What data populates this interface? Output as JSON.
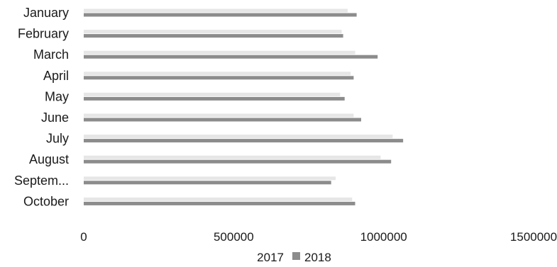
{
  "chart_data": {
    "type": "bar",
    "orientation": "horizontal",
    "categories": [
      "January",
      "February",
      "March",
      "April",
      "May",
      "June",
      "July",
      "August",
      "Septem...",
      "October"
    ],
    "series": [
      {
        "name": "2017",
        "values": [
          880000,
          860000,
          905000,
          890000,
          855000,
          900000,
          1030000,
          990000,
          840000,
          895000
        ],
        "color": "#e6e6e6"
      },
      {
        "name": "2018",
        "values": [
          910000,
          865000,
          980000,
          900000,
          870000,
          925000,
          1065000,
          1025000,
          825000,
          905000
        ],
        "color": "#8c8c8c"
      }
    ],
    "xlim": [
      0,
      1500000
    ],
    "xticks": [
      "0",
      "500000",
      "1000000",
      "1500000"
    ],
    "legend": {
      "position": "bottom",
      "labels": [
        "2017",
        "2018"
      ]
    },
    "grid": false
  }
}
